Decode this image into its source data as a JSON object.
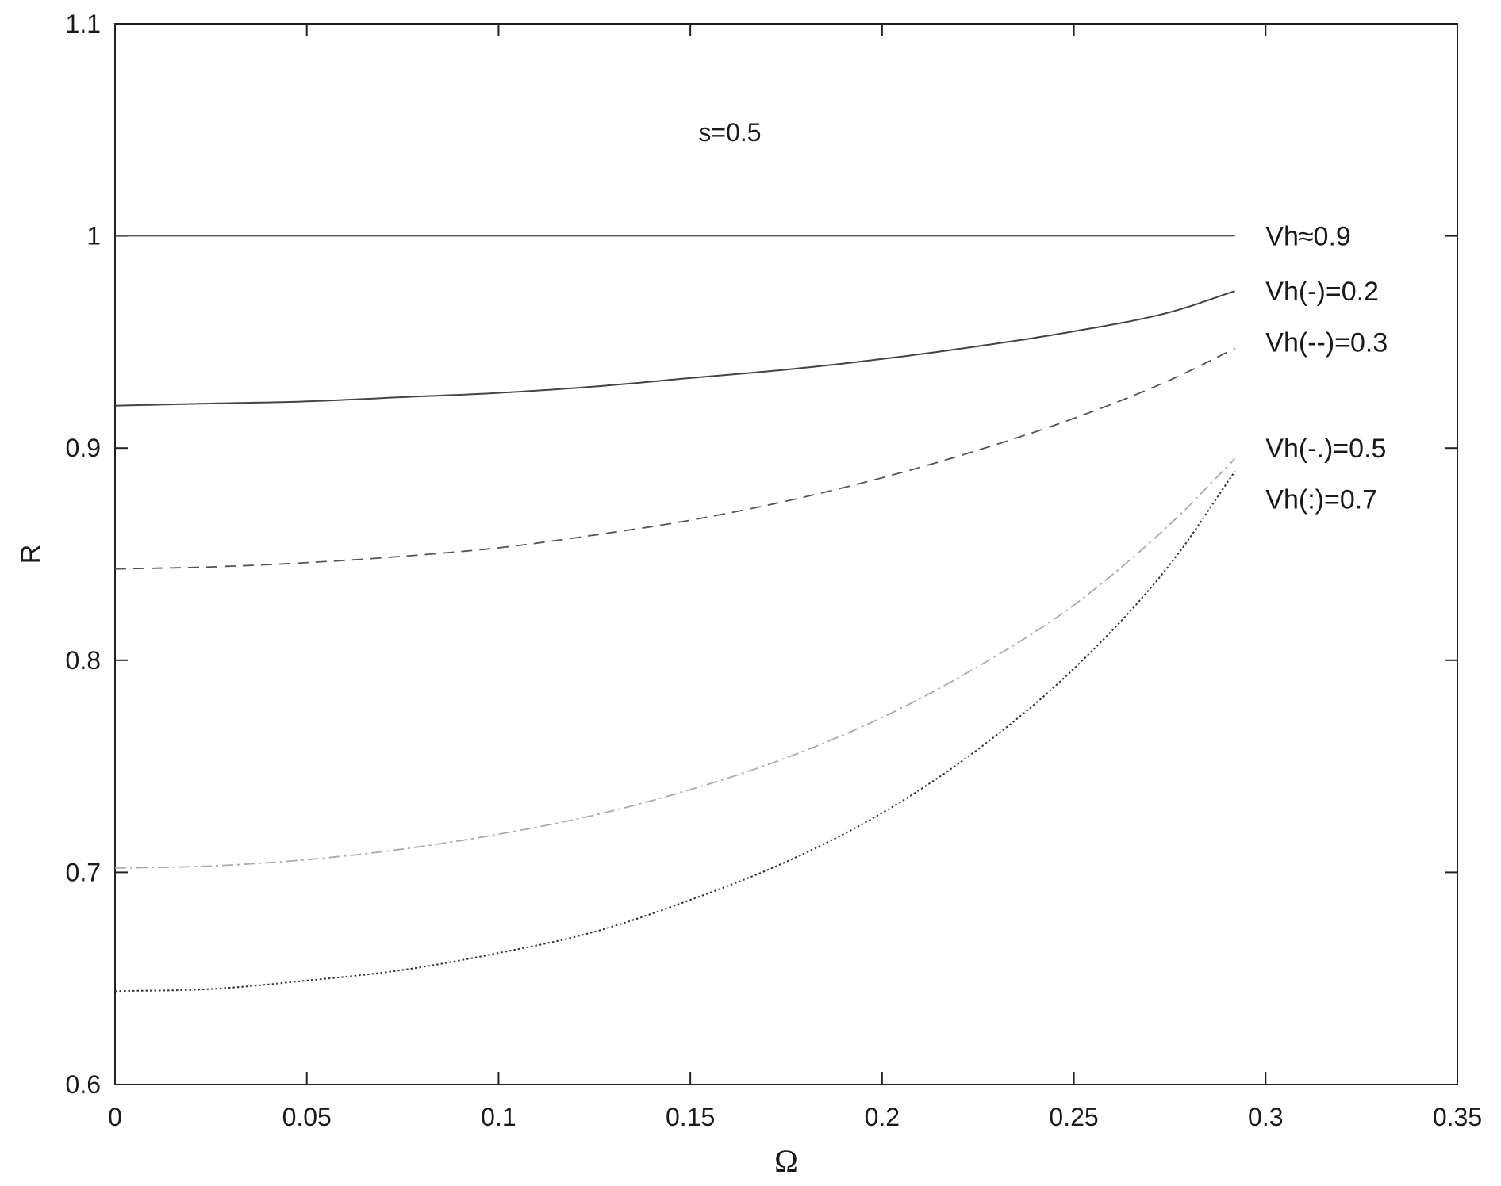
{
  "chart_data": {
    "type": "line",
    "title": "",
    "xlabel": "Ω",
    "ylabel": "R",
    "xlim": [
      0,
      0.35
    ],
    "ylim": [
      0.6,
      1.1
    ],
    "xticks": [
      "0",
      "0.05",
      "0.1",
      "0.15",
      "0.2",
      "0.25",
      "0.3",
      "0.35"
    ],
    "xtick_values": [
      0,
      0.05,
      0.1,
      0.15,
      0.2,
      0.25,
      0.3,
      0.35
    ],
    "yticks": [
      "0.6",
      "0.7",
      "0.8",
      "0.9",
      "1",
      "1.1"
    ],
    "ytick_values": [
      0.6,
      0.7,
      0.8,
      0.9,
      1.0,
      1.1
    ],
    "grid": false,
    "annotation": "s=0.5",
    "series": [
      {
        "name": "Vh≈0.9",
        "style": "solid-thin",
        "color": "#555555",
        "x": [
          0,
          0.05,
          0.1,
          0.15,
          0.2,
          0.25,
          0.292
        ],
        "y": [
          1.0,
          1.0,
          1.0,
          1.0,
          1.0,
          1.0,
          1.0
        ]
      },
      {
        "name": "Vh(-)=0.2",
        "style": "solid",
        "color": "#444444",
        "x": [
          0,
          0.025,
          0.05,
          0.075,
          0.1,
          0.125,
          0.15,
          0.175,
          0.2,
          0.225,
          0.25,
          0.275,
          0.292
        ],
        "y": [
          0.92,
          0.921,
          0.922,
          0.924,
          0.926,
          0.929,
          0.933,
          0.937,
          0.942,
          0.948,
          0.955,
          0.964,
          0.974
        ]
      },
      {
        "name": "Vh(--)=0.3",
        "style": "dashed",
        "color": "#555555",
        "x": [
          0,
          0.025,
          0.05,
          0.075,
          0.1,
          0.125,
          0.15,
          0.175,
          0.2,
          0.225,
          0.25,
          0.275,
          0.292
        ],
        "y": [
          0.843,
          0.844,
          0.846,
          0.849,
          0.853,
          0.859,
          0.866,
          0.875,
          0.886,
          0.899,
          0.914,
          0.932,
          0.947
        ]
      },
      {
        "name": "Vh(-.)=0.5",
        "style": "dashdot",
        "color": "#aaaaaa",
        "x": [
          0,
          0.025,
          0.05,
          0.075,
          0.1,
          0.125,
          0.15,
          0.175,
          0.2,
          0.225,
          0.25,
          0.275,
          0.292
        ],
        "y": [
          0.702,
          0.703,
          0.706,
          0.711,
          0.718,
          0.727,
          0.739,
          0.754,
          0.773,
          0.797,
          0.826,
          0.864,
          0.895
        ]
      },
      {
        "name": "Vh(:)=0.7",
        "style": "dotted",
        "color": "#333333",
        "x": [
          0,
          0.025,
          0.05,
          0.075,
          0.1,
          0.125,
          0.15,
          0.175,
          0.2,
          0.225,
          0.25,
          0.275,
          0.292
        ],
        "y": [
          0.644,
          0.645,
          0.649,
          0.654,
          0.662,
          0.672,
          0.687,
          0.705,
          0.728,
          0.758,
          0.796,
          0.845,
          0.889
        ]
      }
    ]
  }
}
